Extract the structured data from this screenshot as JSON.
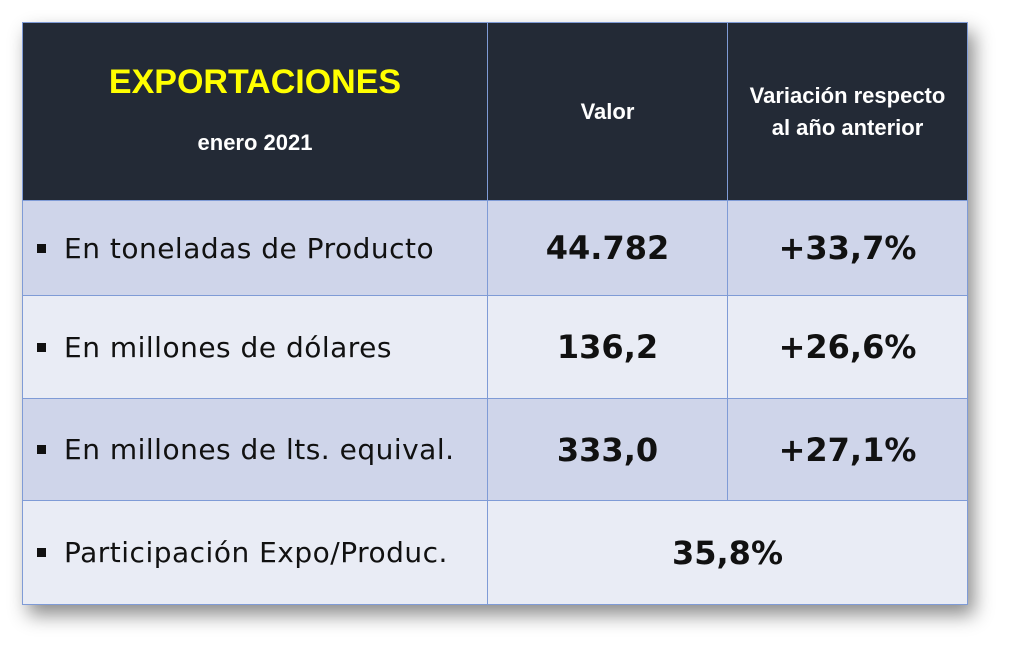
{
  "header": {
    "title": "EXPORTACIONES",
    "subtitle": "enero 2021",
    "columns": [
      "Valor",
      "Variación respecto al año anterior"
    ]
  },
  "table": {
    "rows": [
      [
        "En toneladas de Producto",
        "44.782",
        "+33,7%"
      ],
      [
        "En millones de dólares",
        "136,2",
        "+26,6%"
      ],
      [
        "En millones de lts. equival.",
        "333,0",
        "+27,1%"
      ],
      [
        "Participación Expo/Produc.",
        "35,8%"
      ]
    ]
  }
}
